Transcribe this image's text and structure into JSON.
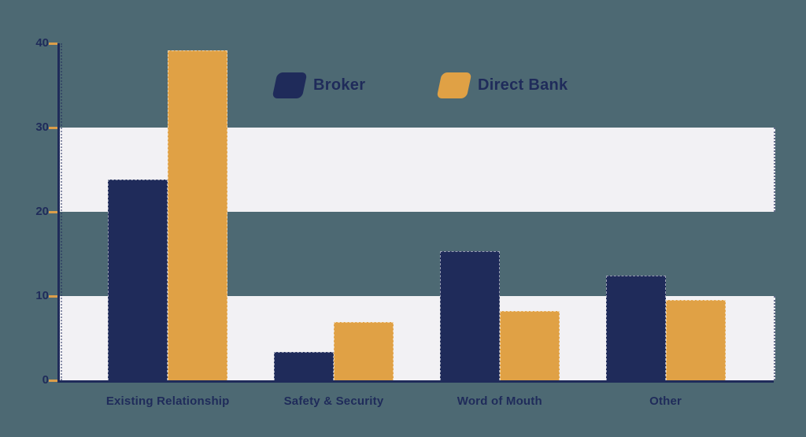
{
  "palette": {
    "background": "#4d6973",
    "stripe": "#f2f1f4",
    "navy": "#1f2b5a",
    "orange": "#e0a145",
    "tick_orange": "#dc9e4a"
  },
  "chart_data": {
    "type": "bar",
    "title": "",
    "xlabel": "",
    "ylabel": "",
    "categories": [
      "Existing Relationship",
      "Safety & Security",
      "Word of Mouth",
      "Other"
    ],
    "series": [
      {
        "name": "Broker",
        "color": "#1f2b5a",
        "values": [
          23.8,
          3.4,
          15.3,
          12.4
        ]
      },
      {
        "name": "Direct Bank",
        "color": "#e0a145",
        "values": [
          39.2,
          6.9,
          8.2,
          9.5
        ]
      }
    ],
    "ylim": [
      0,
      40
    ],
    "yticks": [
      0,
      10,
      20,
      30,
      40
    ],
    "ytick_labels": [
      "0",
      "10",
      "20",
      "30",
      "40"
    ],
    "grid_bands": [
      [
        0,
        10
      ],
      [
        20,
        30
      ]
    ],
    "legend_position": "top-center",
    "grid": "horizontal-stripe-bands"
  }
}
